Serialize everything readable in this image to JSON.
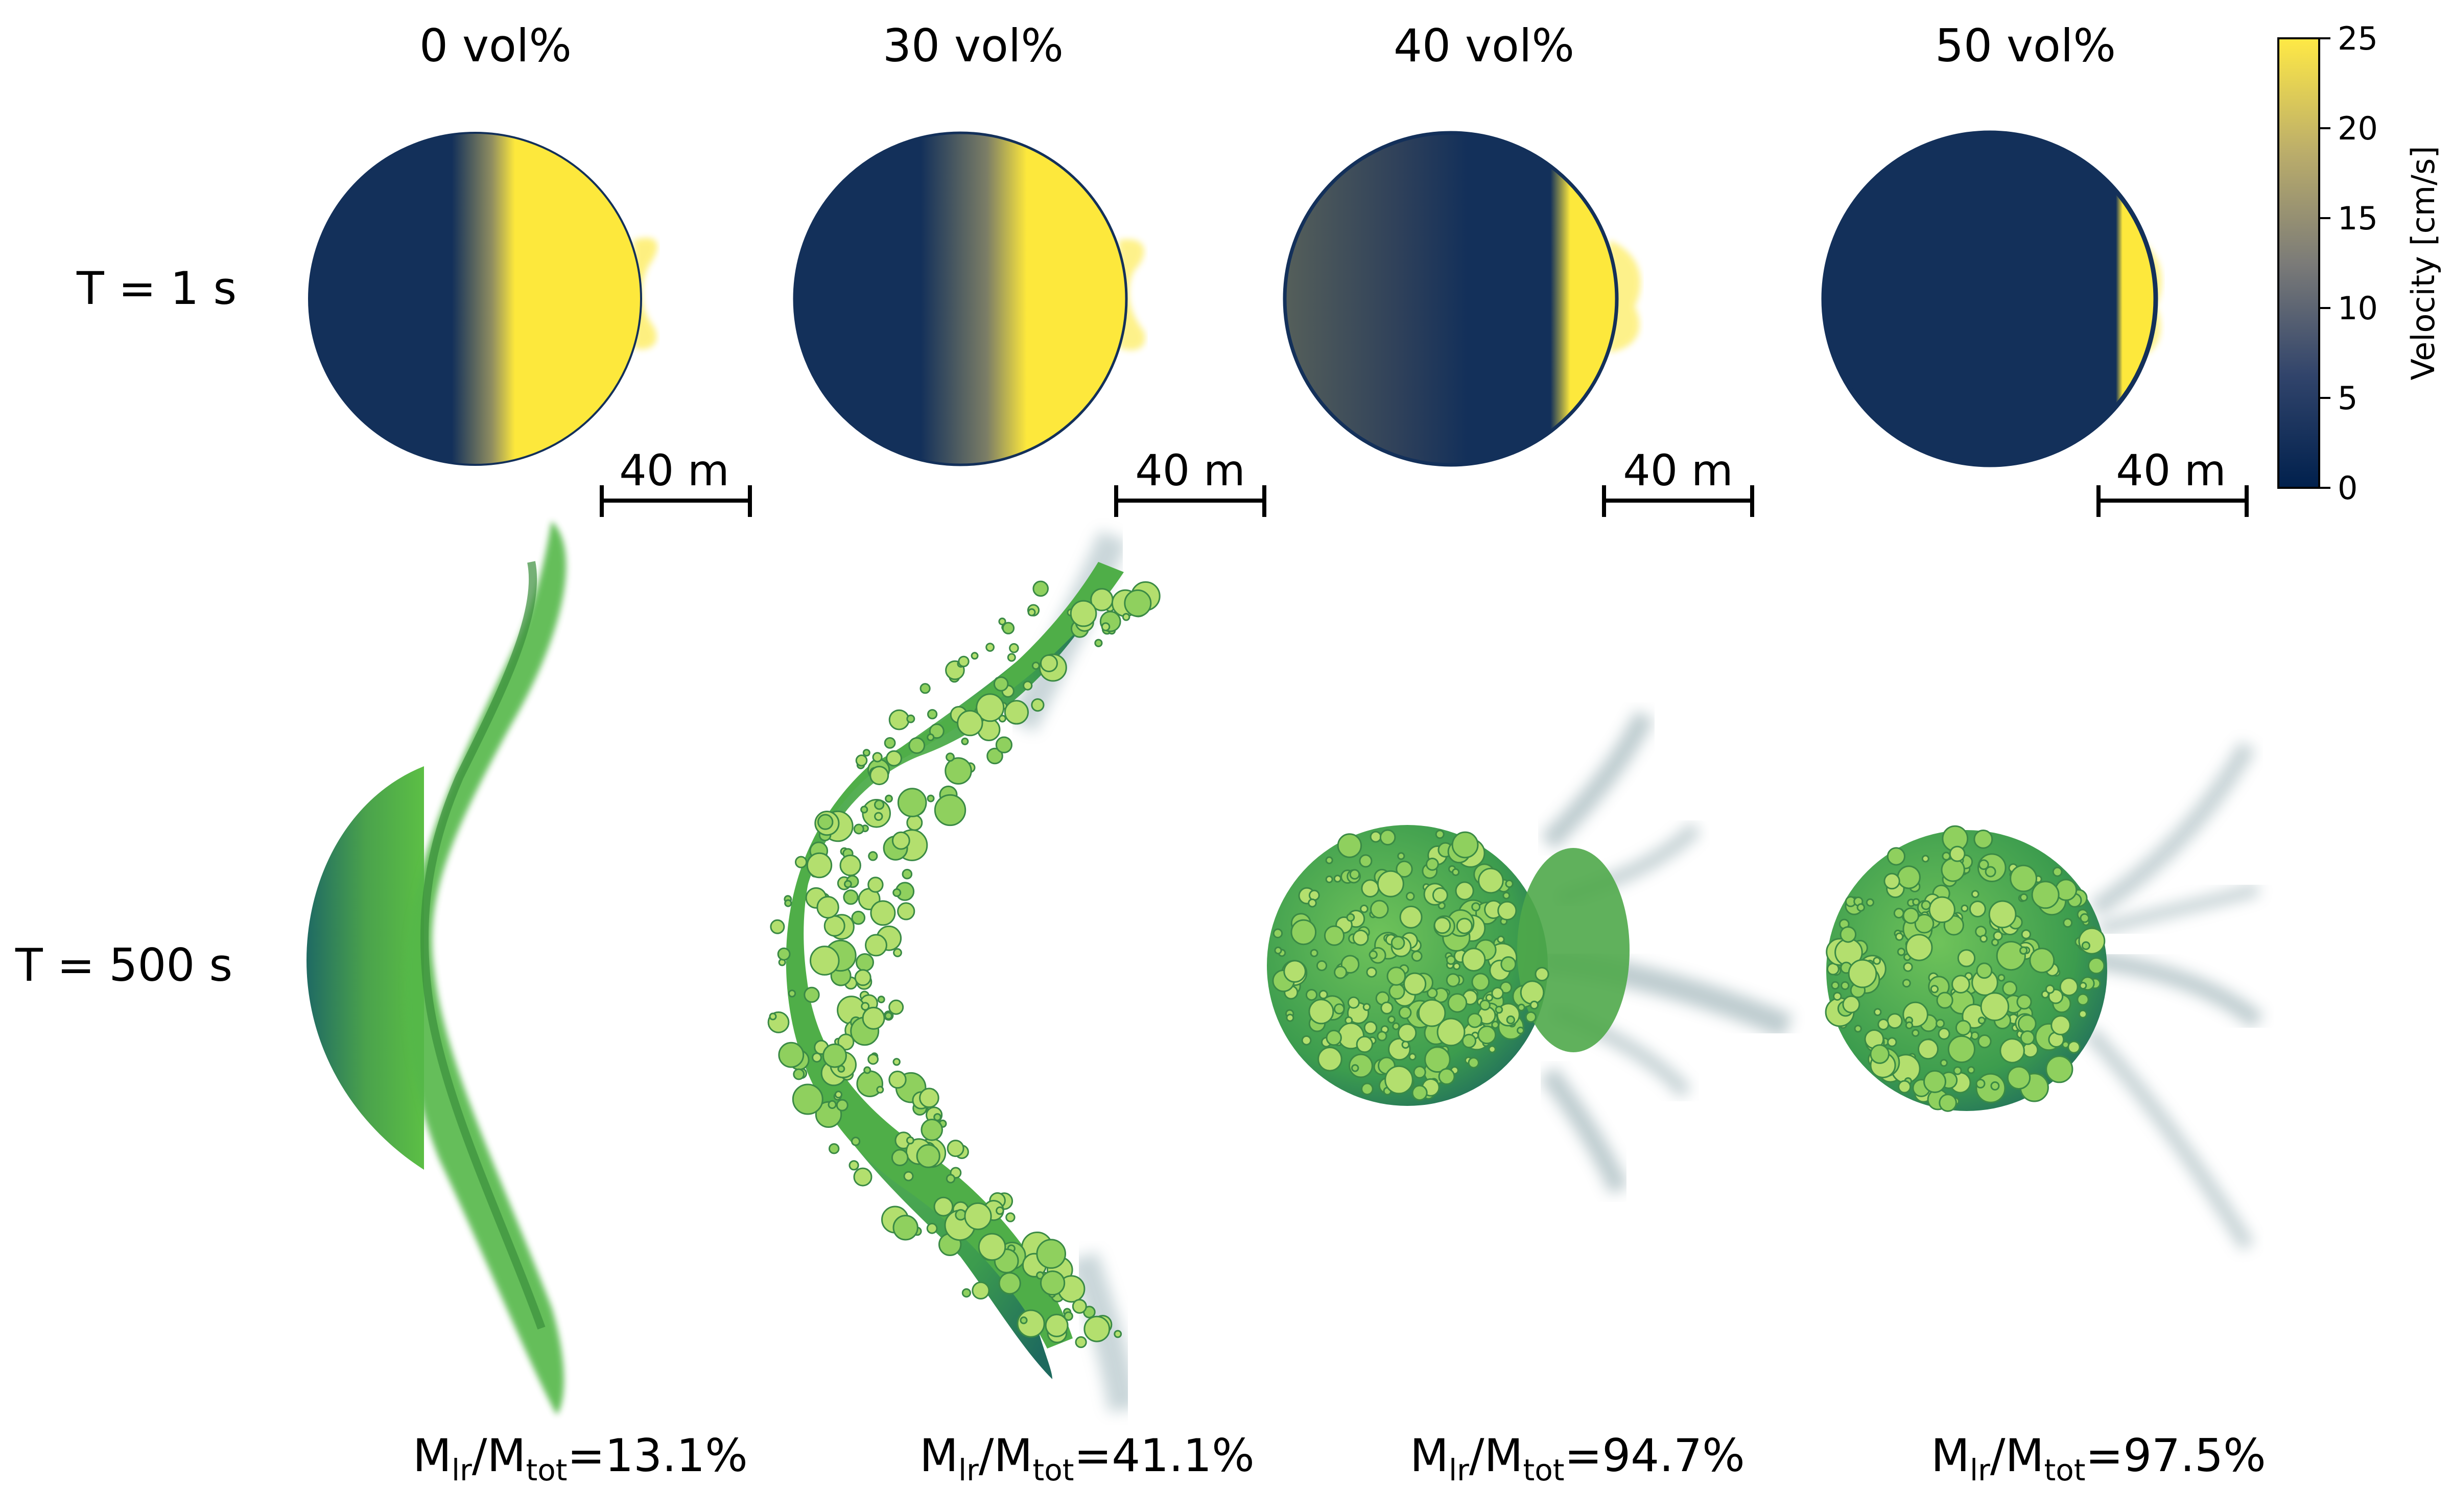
{
  "figure": {
    "columns": [
      {
        "label": "0 vol%",
        "mass_ratio": "13.1%"
      },
      {
        "label": "30 vol%",
        "mass_ratio": "41.1%"
      },
      {
        "label": "40 vol%",
        "mass_ratio": "94.7%"
      },
      {
        "label": "50 vol%",
        "mass_ratio": "97.5%"
      }
    ],
    "rows": [
      {
        "label": "T = 1 s"
      },
      {
        "label": "T = 500 s"
      }
    ],
    "scale_bar": "40 m",
    "mass_label": {
      "main": "M",
      "sub_num": "lr",
      "slash": "/M",
      "sub_den": "tot",
      "equals": "="
    },
    "colorbar": {
      "label": "Velocity [cm/s]",
      "ticks": [
        "0",
        "5",
        "10",
        "15",
        "20",
        "25"
      ],
      "colors": {
        "low": "#0b2150",
        "mid": "#6f7576",
        "high": "#fee838"
      }
    },
    "colors": {
      "navy": "#13305a",
      "yellow": "#fde83c",
      "green": "#54b848",
      "light_green": "#a8dc6a",
      "teal": "#2f6f78"
    }
  }
}
